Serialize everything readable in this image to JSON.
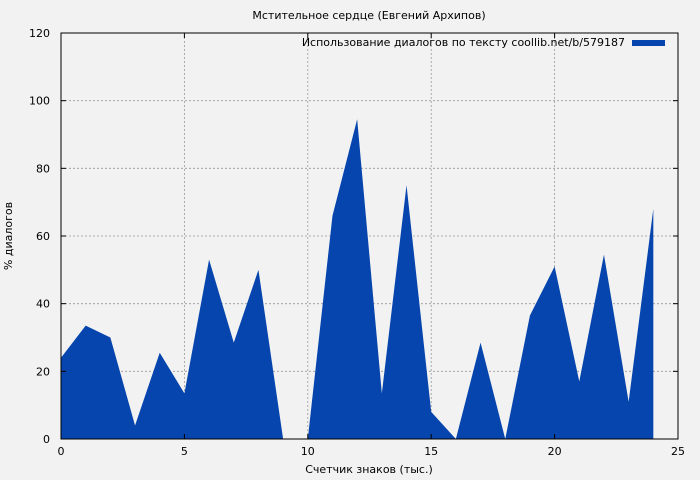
{
  "chart_data": {
    "type": "area",
    "title": "Мстительное сердце (Евгений Архипов)",
    "xlabel": "Счетчик знаков (тыс.)",
    "ylabel": "% диалогов",
    "xlim": [
      0,
      25
    ],
    "ylim": [
      0,
      120
    ],
    "xticks": [
      0,
      5,
      10,
      15,
      20,
      25
    ],
    "yticks": [
      0,
      20,
      40,
      60,
      80,
      100,
      120
    ],
    "grid": true,
    "legend_position": "top-right",
    "series": [
      {
        "name": "Использование диалогов по тексту coollib.net/b/579187",
        "color": "#0645ad",
        "x": [
          0,
          1,
          2,
          3,
          4,
          5,
          6,
          7,
          8,
          9,
          10,
          11,
          12,
          13,
          14,
          15,
          16,
          17,
          18,
          19,
          20,
          21,
          22,
          23,
          24
        ],
        "y": [
          24,
          33.5,
          30,
          4,
          25.5,
          13.5,
          53,
          28.5,
          50,
          0,
          0,
          66,
          94.5,
          13.5,
          75,
          8,
          0,
          28.5,
          0,
          36.5,
          51,
          17,
          54.5,
          11,
          68
        ]
      }
    ]
  }
}
